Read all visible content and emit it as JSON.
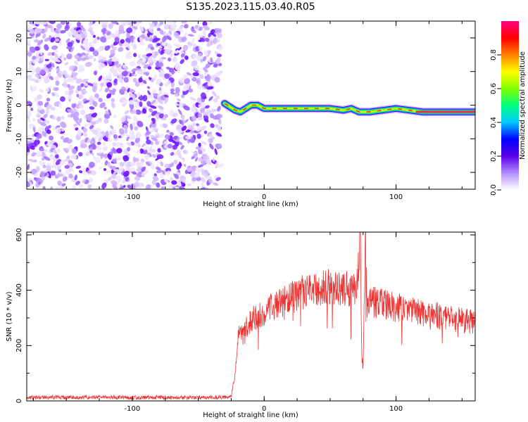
{
  "figure": {
    "title": "S135.2023.115.03.40.R05"
  },
  "chart_data": [
    {
      "type": "heatmap",
      "xlabel": "Height of straight line (km)",
      "ylabel": "Frequency (Hz)",
      "xlim": [
        -180,
        160
      ],
      "ylim": [
        -25,
        25
      ],
      "x_ticks": [
        -100,
        0,
        100
      ],
      "y_ticks": [
        -20,
        -10,
        0,
        10,
        20
      ],
      "noise_region_x": [
        -180,
        -33
      ],
      "carrier_track": [
        {
          "x": -30,
          "y": 0.5
        },
        {
          "x": -26,
          "y": -0.5
        },
        {
          "x": -22,
          "y": -1.5
        },
        {
          "x": -18,
          "y": -2.0
        },
        {
          "x": -14,
          "y": -1.0
        },
        {
          "x": -10,
          "y": 0.0
        },
        {
          "x": -5,
          "y": 0.0
        },
        {
          "x": 0,
          "y": -1.0
        },
        {
          "x": 10,
          "y": -1.0
        },
        {
          "x": 30,
          "y": -1.0
        },
        {
          "x": 50,
          "y": -1.0
        },
        {
          "x": 60,
          "y": -1.5
        },
        {
          "x": 66,
          "y": -1.0
        },
        {
          "x": 72,
          "y": -2.0
        },
        {
          "x": 80,
          "y": -2.0
        },
        {
          "x": 90,
          "y": -1.5
        },
        {
          "x": 100,
          "y": -1.0
        },
        {
          "x": 110,
          "y": -1.5
        },
        {
          "x": 120,
          "y": -2.0
        },
        {
          "x": 160,
          "y": -2.0
        }
      ],
      "colorbar": {
        "label": "Normalized spectral amplitude",
        "range": [
          0,
          1
        ],
        "ticks": [
          "0.0",
          "0.2",
          "0.4",
          "0.6",
          "0.8"
        ],
        "colors": [
          "#ffffff",
          "#b48cff",
          "#5a00e6",
          "#0000ff",
          "#00c8ff",
          "#00ff80",
          "#80ff00",
          "#ffff00",
          "#ff8000",
          "#ff0000",
          "#ff0080"
        ]
      }
    },
    {
      "type": "line",
      "xlabel": "Height of straight line (km)",
      "ylabel": "SNR (10 * v/v)",
      "xlim": [
        -180,
        160
      ],
      "ylim": [
        0,
        610
      ],
      "x_ticks": [
        -100,
        0,
        100
      ],
      "y_ticks": [
        0,
        200,
        400,
        600
      ],
      "color": "#ee3333",
      "series": [
        {
          "x": [
            -180,
            -160,
            -140,
            -120,
            -100,
            -80,
            -60,
            -40,
            -25,
            -22,
            -20,
            -15,
            -10,
            -5,
            0,
            10,
            20,
            30,
            40,
            50,
            60,
            65,
            70,
            73,
            74,
            75,
            76,
            77,
            78,
            80,
            90,
            100,
            110,
            120,
            130,
            140,
            150,
            160
          ],
          "values": [
            12,
            13,
            12,
            14,
            12,
            13,
            12,
            13,
            14,
            100,
            235,
            255,
            290,
            310,
            320,
            350,
            370,
            395,
            405,
            412,
            410,
            405,
            395,
            600,
            150,
            130,
            420,
            580,
            350,
            360,
            350,
            340,
            330,
            320,
            310,
            300,
            290,
            285
          ]
        }
      ]
    }
  ]
}
